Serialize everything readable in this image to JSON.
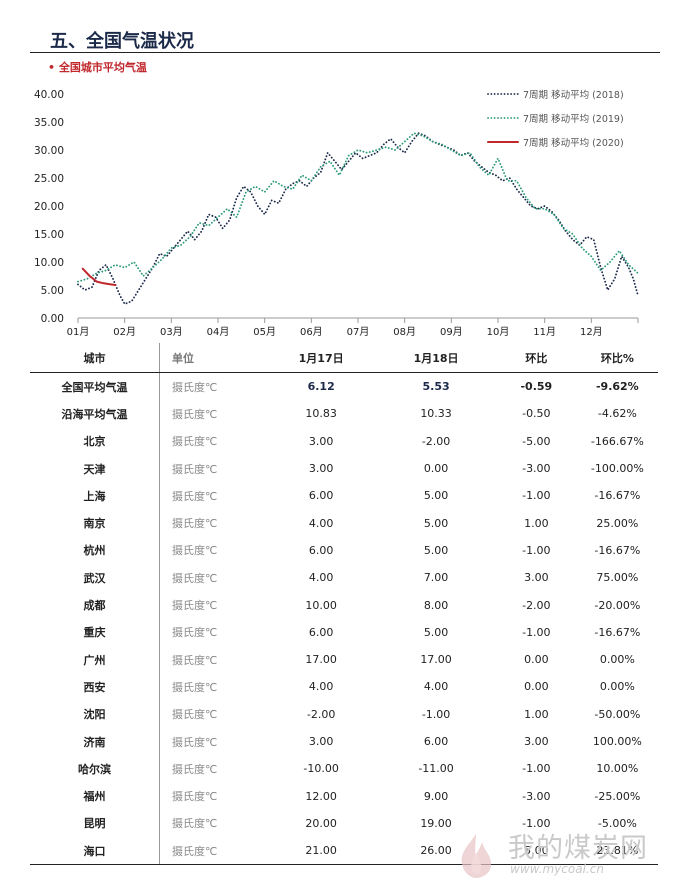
{
  "page": {
    "title": "五、全国气温状况",
    "subtitle": "• 全国城市平均气温"
  },
  "chart_data": {
    "type": "line",
    "title": "",
    "xlabel": "",
    "ylabel": "",
    "ylim": [
      0,
      40
    ],
    "yticks": [
      "0.00",
      "5.00",
      "10.00",
      "15.00",
      "20.00",
      "25.00",
      "30.00",
      "35.00",
      "40.00"
    ],
    "categories": [
      "01月",
      "02月",
      "03月",
      "04月",
      "05月",
      "06月",
      "07月",
      "08月",
      "09月",
      "10月",
      "11月",
      "12月"
    ],
    "legend_position": "top-right",
    "grid": false,
    "series": [
      {
        "name": "7周期 移动平均 (2018)",
        "color": "#1c2a4a",
        "style": "dotted",
        "points": [
          [
            0.0,
            6.0
          ],
          [
            0.15,
            5.0
          ],
          [
            0.3,
            5.5
          ],
          [
            0.45,
            8.5
          ],
          [
            0.6,
            9.5
          ],
          [
            0.75,
            7.0
          ],
          [
            0.9,
            4.0
          ],
          [
            1.0,
            2.5
          ],
          [
            1.15,
            3.0
          ],
          [
            1.3,
            5.0
          ],
          [
            1.45,
            7.0
          ],
          [
            1.6,
            9.0
          ],
          [
            1.75,
            11.5
          ],
          [
            1.9,
            11.0
          ],
          [
            2.05,
            12.5
          ],
          [
            2.2,
            14.0
          ],
          [
            2.35,
            15.5
          ],
          [
            2.5,
            14.0
          ],
          [
            2.65,
            15.5
          ],
          [
            2.8,
            18.5
          ],
          [
            2.95,
            18.0
          ],
          [
            3.1,
            16.0
          ],
          [
            3.25,
            17.5
          ],
          [
            3.4,
            21.5
          ],
          [
            3.55,
            23.5
          ],
          [
            3.7,
            22.5
          ],
          [
            3.85,
            20.0
          ],
          [
            4.0,
            18.5
          ],
          [
            4.15,
            21.0
          ],
          [
            4.3,
            20.5
          ],
          [
            4.45,
            23.0
          ],
          [
            4.6,
            24.0
          ],
          [
            4.75,
            24.5
          ],
          [
            4.9,
            23.5
          ],
          [
            5.05,
            25.0
          ],
          [
            5.2,
            26.0
          ],
          [
            5.35,
            29.5
          ],
          [
            5.5,
            28.0
          ],
          [
            5.65,
            26.5
          ],
          [
            5.8,
            28.0
          ],
          [
            5.95,
            29.5
          ],
          [
            6.1,
            28.5
          ],
          [
            6.25,
            29.0
          ],
          [
            6.4,
            29.5
          ],
          [
            6.55,
            31.0
          ],
          [
            6.7,
            32.0
          ],
          [
            6.85,
            30.5
          ],
          [
            7.0,
            29.5
          ],
          [
            7.15,
            31.5
          ],
          [
            7.3,
            33.0
          ],
          [
            7.45,
            32.5
          ],
          [
            7.6,
            31.5
          ],
          [
            7.75,
            31.0
          ],
          [
            7.9,
            30.5
          ],
          [
            8.05,
            30.0
          ],
          [
            8.2,
            29.0
          ],
          [
            8.35,
            29.5
          ],
          [
            8.5,
            28.0
          ],
          [
            8.65,
            27.0
          ],
          [
            8.8,
            26.0
          ],
          [
            8.95,
            25.5
          ],
          [
            9.1,
            24.5
          ],
          [
            9.25,
            25.0
          ],
          [
            9.4,
            23.0
          ],
          [
            9.55,
            21.5
          ],
          [
            9.7,
            20.0
          ],
          [
            9.85,
            19.5
          ],
          [
            10.0,
            20.0
          ],
          [
            10.15,
            19.0
          ],
          [
            10.3,
            17.5
          ],
          [
            10.45,
            15.5
          ],
          [
            10.6,
            14.0
          ],
          [
            10.75,
            13.0
          ],
          [
            10.9,
            14.5
          ],
          [
            11.05,
            14.0
          ],
          [
            11.2,
            9.0
          ],
          [
            11.35,
            5.0
          ],
          [
            11.5,
            7.0
          ],
          [
            11.65,
            11.0
          ],
          [
            11.8,
            9.0
          ],
          [
            11.9,
            7.0
          ],
          [
            12.0,
            4.0
          ]
        ]
      },
      {
        "name": "7周期 移动平均 (2019)",
        "color": "#2c9a7a",
        "style": "dotted",
        "points": [
          [
            0.0,
            6.5
          ],
          [
            0.2,
            7.0
          ],
          [
            0.4,
            8.0
          ],
          [
            0.6,
            8.5
          ],
          [
            0.8,
            9.5
          ],
          [
            1.0,
            9.0
          ],
          [
            1.2,
            10.0
          ],
          [
            1.4,
            7.5
          ],
          [
            1.6,
            9.0
          ],
          [
            1.8,
            10.5
          ],
          [
            2.0,
            12.5
          ],
          [
            2.2,
            13.0
          ],
          [
            2.4,
            14.5
          ],
          [
            2.6,
            17.0
          ],
          [
            2.8,
            16.5
          ],
          [
            3.0,
            18.0
          ],
          [
            3.2,
            19.5
          ],
          [
            3.4,
            18.0
          ],
          [
            3.6,
            22.5
          ],
          [
            3.8,
            23.5
          ],
          [
            4.0,
            22.5
          ],
          [
            4.2,
            24.5
          ],
          [
            4.4,
            23.5
          ],
          [
            4.6,
            23.0
          ],
          [
            4.8,
            25.5
          ],
          [
            5.0,
            24.5
          ],
          [
            5.2,
            27.0
          ],
          [
            5.4,
            28.0
          ],
          [
            5.6,
            25.5
          ],
          [
            5.8,
            29.0
          ],
          [
            6.0,
            30.0
          ],
          [
            6.2,
            29.5
          ],
          [
            6.4,
            30.0
          ],
          [
            6.6,
            30.5
          ],
          [
            6.8,
            30.0
          ],
          [
            7.0,
            31.5
          ],
          [
            7.2,
            33.0
          ],
          [
            7.4,
            32.5
          ],
          [
            7.6,
            31.5
          ],
          [
            7.8,
            31.0
          ],
          [
            8.0,
            30.0
          ],
          [
            8.2,
            29.0
          ],
          [
            8.4,
            29.5
          ],
          [
            8.6,
            27.0
          ],
          [
            8.8,
            25.5
          ],
          [
            9.0,
            28.5
          ],
          [
            9.2,
            24.5
          ],
          [
            9.4,
            24.5
          ],
          [
            9.6,
            21.5
          ],
          [
            9.8,
            19.5
          ],
          [
            10.0,
            19.5
          ],
          [
            10.2,
            18.5
          ],
          [
            10.4,
            16.0
          ],
          [
            10.6,
            15.0
          ],
          [
            10.8,
            12.5
          ],
          [
            11.0,
            11.0
          ],
          [
            11.2,
            8.5
          ],
          [
            11.4,
            10.0
          ],
          [
            11.6,
            12.0
          ],
          [
            11.8,
            9.5
          ],
          [
            12.0,
            8.0
          ]
        ]
      },
      {
        "name": "7周期 移动平均 (2020)",
        "color": "#c0282d",
        "style": "solid",
        "points": [
          [
            0.1,
            8.8
          ],
          [
            0.25,
            7.5
          ],
          [
            0.4,
            6.5
          ],
          [
            0.55,
            6.2
          ],
          [
            0.7,
            6.0
          ],
          [
            0.8,
            5.9
          ]
        ]
      }
    ]
  },
  "table": {
    "headers": [
      "城市",
      "单位",
      "1月17日",
      "1月18日",
      "环比",
      "环比%"
    ],
    "rows": [
      {
        "city": "全国平均气温",
        "unit": "摄氏度℃",
        "d1": "6.12",
        "d2": "5.53",
        "chg": "-0.59",
        "pct": "-9.62%"
      },
      {
        "city": "沿海平均气温",
        "unit": "摄氏度℃",
        "d1": "10.83",
        "d2": "10.33",
        "chg": "-0.50",
        "pct": "-4.62%"
      },
      {
        "city": "北京",
        "unit": "摄氏度℃",
        "d1": "3.00",
        "d2": "-2.00",
        "chg": "-5.00",
        "pct": "-166.67%"
      },
      {
        "city": "天津",
        "unit": "摄氏度℃",
        "d1": "3.00",
        "d2": "0.00",
        "chg": "-3.00",
        "pct": "-100.00%"
      },
      {
        "city": "上海",
        "unit": "摄氏度℃",
        "d1": "6.00",
        "d2": "5.00",
        "chg": "-1.00",
        "pct": "-16.67%"
      },
      {
        "city": "南京",
        "unit": "摄氏度℃",
        "d1": "4.00",
        "d2": "5.00",
        "chg": "1.00",
        "pct": "25.00%"
      },
      {
        "city": "杭州",
        "unit": "摄氏度℃",
        "d1": "6.00",
        "d2": "5.00",
        "chg": "-1.00",
        "pct": "-16.67%"
      },
      {
        "city": "武汉",
        "unit": "摄氏度℃",
        "d1": "4.00",
        "d2": "7.00",
        "chg": "3.00",
        "pct": "75.00%"
      },
      {
        "city": "成都",
        "unit": "摄氏度℃",
        "d1": "10.00",
        "d2": "8.00",
        "chg": "-2.00",
        "pct": "-20.00%"
      },
      {
        "city": "重庆",
        "unit": "摄氏度℃",
        "d1": "6.00",
        "d2": "5.00",
        "chg": "-1.00",
        "pct": "-16.67%"
      },
      {
        "city": "广州",
        "unit": "摄氏度℃",
        "d1": "17.00",
        "d2": "17.00",
        "chg": "0.00",
        "pct": "0.00%"
      },
      {
        "city": "西安",
        "unit": "摄氏度℃",
        "d1": "4.00",
        "d2": "4.00",
        "chg": "0.00",
        "pct": "0.00%"
      },
      {
        "city": "沈阳",
        "unit": "摄氏度℃",
        "d1": "-2.00",
        "d2": "-1.00",
        "chg": "1.00",
        "pct": "-50.00%"
      },
      {
        "city": "济南",
        "unit": "摄氏度℃",
        "d1": "3.00",
        "d2": "6.00",
        "chg": "3.00",
        "pct": "100.00%"
      },
      {
        "city": "哈尔滨",
        "unit": "摄氏度℃",
        "d1": "-10.00",
        "d2": "-11.00",
        "chg": "-1.00",
        "pct": "10.00%"
      },
      {
        "city": "福州",
        "unit": "摄氏度℃",
        "d1": "12.00",
        "d2": "9.00",
        "chg": "-3.00",
        "pct": "-25.00%"
      },
      {
        "city": "昆明",
        "unit": "摄氏度℃",
        "d1": "20.00",
        "d2": "19.00",
        "chg": "-1.00",
        "pct": "-5.00%"
      },
      {
        "city": "海口",
        "unit": "摄氏度℃",
        "d1": "21.00",
        "d2": "26.00",
        "chg": "5.00",
        "pct": "23.81%"
      }
    ]
  },
  "watermark": {
    "text": "我的煤炭网",
    "url": "www.mycoal.cn"
  }
}
